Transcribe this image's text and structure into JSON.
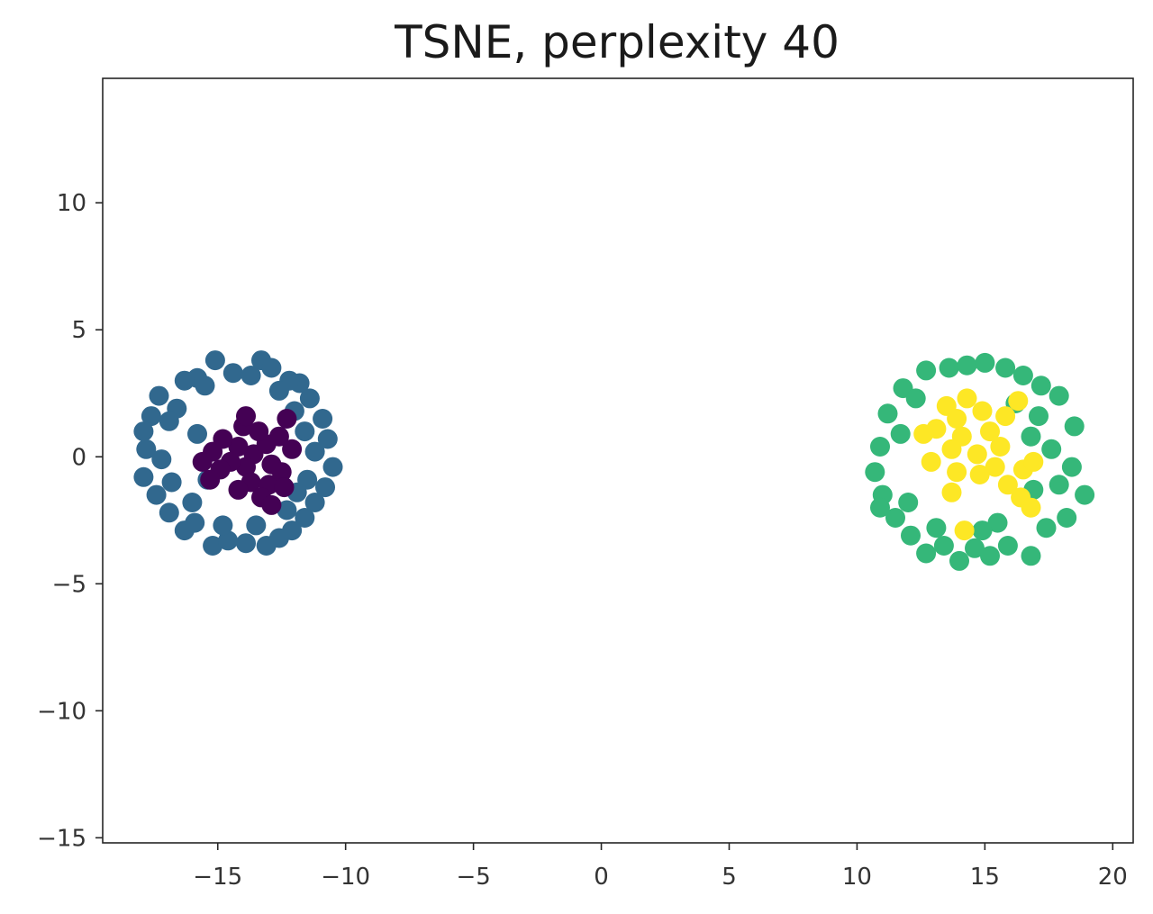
{
  "chart_data": {
    "type": "scatter",
    "title": "TSNE, perplexity 40",
    "xlabel": "",
    "ylabel": "",
    "xlim": [
      -19.5,
      20.8
    ],
    "ylim": [
      -15.2,
      14.9
    ],
    "x_ticks": [
      -15,
      -10,
      -5,
      0,
      5,
      10,
      15,
      20
    ],
    "x_tick_labels": [
      "−15",
      "−10",
      "−5",
      "0",
      "5",
      "10",
      "15",
      "20"
    ],
    "y_ticks": [
      -15,
      -10,
      -5,
      0,
      5,
      10
    ],
    "y_tick_labels": [
      "−15",
      "−10",
      "−5",
      "0",
      "5",
      "10"
    ],
    "grid": false,
    "legend": "none",
    "series": [
      {
        "color": "#31688e",
        "points": [
          [
            -15.1,
            3.8
          ],
          [
            -13.3,
            3.8
          ],
          [
            -12.9,
            3.5
          ],
          [
            -15.8,
            3.1
          ],
          [
            -16.3,
            3.0
          ],
          [
            -11.8,
            2.9
          ],
          [
            -17.3,
            2.4
          ],
          [
            -11.4,
            2.3
          ],
          [
            -17.6,
            1.6
          ],
          [
            -10.9,
            1.5
          ],
          [
            -17.9,
            1.0
          ],
          [
            -10.7,
            0.7
          ],
          [
            -17.8,
            0.3
          ],
          [
            -10.5,
            -0.4
          ],
          [
            -17.9,
            -0.8
          ],
          [
            -10.8,
            -1.2
          ],
          [
            -17.4,
            -1.5
          ],
          [
            -11.2,
            -1.8
          ],
          [
            -16.9,
            -2.2
          ],
          [
            -11.6,
            -2.4
          ],
          [
            -16.3,
            -2.9
          ],
          [
            -12.1,
            -2.9
          ],
          [
            -15.2,
            -3.5
          ],
          [
            -14.6,
            -3.3
          ],
          [
            -13.9,
            -3.4
          ],
          [
            -13.1,
            -3.5
          ],
          [
            -12.6,
            -3.2
          ],
          [
            -15.9,
            -2.6
          ],
          [
            -16.6,
            1.9
          ],
          [
            -12.2,
            3.0
          ],
          [
            -14.4,
            3.3
          ],
          [
            -13.7,
            3.2
          ],
          [
            -15.5,
            2.8
          ],
          [
            -12.6,
            2.6
          ],
          [
            -16.9,
            1.4
          ],
          [
            -11.6,
            1.0
          ],
          [
            -17.2,
            -0.1
          ],
          [
            -11.2,
            0.2
          ],
          [
            -16.8,
            -1.0
          ],
          [
            -11.5,
            -0.9
          ],
          [
            -16.0,
            -1.8
          ],
          [
            -12.3,
            -2.1
          ],
          [
            -14.8,
            -2.7
          ],
          [
            -13.5,
            -2.7
          ],
          [
            -15.8,
            0.9
          ],
          [
            -15.4,
            -0.9
          ],
          [
            -12.0,
            1.8
          ],
          [
            -11.9,
            -1.4
          ]
        ]
      },
      {
        "color": "#440154",
        "points": [
          [
            -13.6,
            0.1
          ],
          [
            -14.2,
            0.4
          ],
          [
            -13.1,
            0.5
          ],
          [
            -13.9,
            -0.4
          ],
          [
            -12.9,
            -0.3
          ],
          [
            -14.5,
            -0.2
          ],
          [
            -13.4,
            1.0
          ],
          [
            -14.0,
            1.2
          ],
          [
            -12.6,
            0.8
          ],
          [
            -12.3,
            1.5
          ],
          [
            -14.8,
            0.7
          ],
          [
            -15.2,
            0.2
          ],
          [
            -14.9,
            -0.5
          ],
          [
            -13.7,
            -1.0
          ],
          [
            -13.0,
            -1.1
          ],
          [
            -12.5,
            -0.6
          ],
          [
            -13.3,
            -1.6
          ],
          [
            -12.9,
            -1.9
          ],
          [
            -14.2,
            -1.3
          ],
          [
            -15.3,
            -0.9
          ],
          [
            -12.1,
            0.3
          ],
          [
            -12.4,
            -1.2
          ],
          [
            -13.9,
            1.6
          ],
          [
            -15.6,
            -0.2
          ]
        ]
      },
      {
        "color": "#35b779",
        "points": [
          [
            12.7,
            3.4
          ],
          [
            13.6,
            3.5
          ],
          [
            14.3,
            3.6
          ],
          [
            15.0,
            3.7
          ],
          [
            15.8,
            3.5
          ],
          [
            16.5,
            3.2
          ],
          [
            17.2,
            2.8
          ],
          [
            17.9,
            2.4
          ],
          [
            11.8,
            2.7
          ],
          [
            11.2,
            1.7
          ],
          [
            10.9,
            0.4
          ],
          [
            10.7,
            -0.6
          ],
          [
            11.0,
            -1.5
          ],
          [
            11.5,
            -2.4
          ],
          [
            12.1,
            -3.1
          ],
          [
            12.7,
            -3.8
          ],
          [
            13.4,
            -3.5
          ],
          [
            14.0,
            -4.1
          ],
          [
            14.6,
            -3.6
          ],
          [
            15.2,
            -3.9
          ],
          [
            15.9,
            -3.5
          ],
          [
            16.8,
            -3.9
          ],
          [
            17.4,
            -2.8
          ],
          [
            18.2,
            -2.4
          ],
          [
            18.9,
            -1.5
          ],
          [
            18.4,
            -0.4
          ],
          [
            18.5,
            1.2
          ],
          [
            17.6,
            0.3
          ],
          [
            16.9,
            -1.3
          ],
          [
            17.1,
            1.6
          ],
          [
            10.9,
            -2.0
          ],
          [
            12.3,
            2.3
          ],
          [
            16.2,
            2.1
          ],
          [
            15.5,
            -2.6
          ],
          [
            13.1,
            -2.8
          ],
          [
            12.0,
            -1.8
          ],
          [
            11.7,
            0.9
          ],
          [
            16.8,
            0.8
          ],
          [
            17.9,
            -1.1
          ],
          [
            14.9,
            -2.9
          ]
        ]
      },
      {
        "color": "#fde725",
        "points": [
          [
            13.9,
            1.5
          ],
          [
            14.3,
            2.3
          ],
          [
            13.5,
            2.0
          ],
          [
            14.9,
            1.8
          ],
          [
            13.1,
            1.1
          ],
          [
            14.1,
            0.8
          ],
          [
            15.2,
            1.0
          ],
          [
            13.7,
            0.3
          ],
          [
            14.7,
            0.1
          ],
          [
            12.6,
            0.9
          ],
          [
            15.6,
            0.4
          ],
          [
            12.9,
            -0.2
          ],
          [
            13.9,
            -0.6
          ],
          [
            14.8,
            -0.7
          ],
          [
            15.4,
            -0.4
          ],
          [
            15.8,
            1.6
          ],
          [
            16.3,
            2.2
          ],
          [
            16.5,
            -0.5
          ],
          [
            16.9,
            -0.2
          ],
          [
            16.4,
            -1.6
          ],
          [
            16.8,
            -2.0
          ],
          [
            13.7,
            -1.4
          ],
          [
            14.2,
            -2.9
          ],
          [
            15.9,
            -1.1
          ]
        ]
      }
    ]
  }
}
